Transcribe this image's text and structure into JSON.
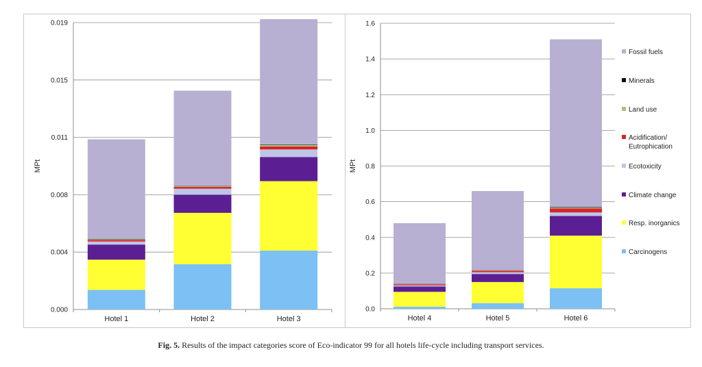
{
  "figure": {
    "caption_label": "Fig. 5.",
    "caption_text": "Results of the impact categories score of Eco-indicator 99 for all hotels life-cycle including transport services."
  },
  "legend": [
    {
      "name": "Fossil fuels",
      "color": "#b8b0d2"
    },
    {
      "name": "Minerals",
      "color": "#111111"
    },
    {
      "name": "Land use",
      "color": "#a9c57a"
    },
    {
      "name": "Acidification/ Eutrophication",
      "color": "#d8242b"
    },
    {
      "name": "Ecotoxicity",
      "color": "#bfc5e6"
    },
    {
      "name": "Climate change",
      "color": "#5b1f93"
    },
    {
      "name": "Resp. inorganics",
      "color": "#ffff33"
    },
    {
      "name": "Carcinogens",
      "color": "#7cc0f4"
    }
  ],
  "chart_data": [
    {
      "type": "bar",
      "stacked": true,
      "ylabel": "MPt",
      "ylim": [
        0,
        0.019
      ],
      "yticks": [
        "0.000",
        "0.004",
        "0.008",
        "0.011",
        "0.015",
        "0.019"
      ],
      "categories": [
        "Hotel 1",
        "Hotel 2",
        "Hotel 3"
      ],
      "series": [
        {
          "name": "Carcinogens",
          "color": "#7cc0f4",
          "values": [
            0.0013,
            0.003,
            0.0039
          ]
        },
        {
          "name": "Resp. inorganics",
          "color": "#ffff33",
          "values": [
            0.002,
            0.0034,
            0.0046
          ]
        },
        {
          "name": "Climate change",
          "color": "#5b1f93",
          "values": [
            0.001,
            0.0012,
            0.0016
          ]
        },
        {
          "name": "Ecotoxicity",
          "color": "#bfc5e6",
          "values": [
            0.0002,
            0.0004,
            0.0005
          ]
        },
        {
          "name": "Acidification/ Eutrophication",
          "color": "#d8242b",
          "values": [
            0.0001,
            0.00012,
            0.0002
          ]
        },
        {
          "name": "Land use",
          "color": "#a9c57a",
          "values": [
            5e-05,
            5e-05,
            0.0001
          ]
        },
        {
          "name": "Minerals",
          "color": "#111111",
          "values": [
            2e-05,
            2e-05,
            3e-05
          ]
        },
        {
          "name": "Fossil fuels",
          "color": "#b8b0d2",
          "values": [
            0.0066,
            0.0063,
            0.0083
          ]
        }
      ],
      "grid": true
    },
    {
      "type": "bar",
      "stacked": true,
      "ylabel": "MPt",
      "ylim": [
        0,
        1.6
      ],
      "yticks": [
        "0.0",
        "0.2",
        "0.4",
        "0.6",
        "0.8",
        "1.0",
        "1.2",
        "1.4",
        "1.6"
      ],
      "categories": [
        "Hotel 4",
        "Hotel 5",
        "Hotel 6"
      ],
      "series": [
        {
          "name": "Carcinogens",
          "color": "#7cc0f4",
          "values": [
            0.012,
            0.032,
            0.115
          ]
        },
        {
          "name": "Resp. inorganics",
          "color": "#ffff33",
          "values": [
            0.083,
            0.118,
            0.295
          ]
        },
        {
          "name": "Climate change",
          "color": "#5b1f93",
          "values": [
            0.03,
            0.045,
            0.11
          ]
        },
        {
          "name": "Ecotoxicity",
          "color": "#bfc5e6",
          "values": [
            0.006,
            0.01,
            0.02
          ]
        },
        {
          "name": "Acidification/ Eutrophication",
          "color": "#d8242b",
          "values": [
            0.006,
            0.008,
            0.022
          ]
        },
        {
          "name": "Land use",
          "color": "#a9c57a",
          "values": [
            0.002,
            0.002,
            0.005
          ]
        },
        {
          "name": "Minerals",
          "color": "#111111",
          "values": [
            0.001,
            0.001,
            0.003
          ]
        },
        {
          "name": "Fossil fuels",
          "color": "#b8b0d2",
          "values": [
            0.34,
            0.444,
            0.94
          ]
        }
      ],
      "grid": true,
      "legend_position": "right"
    }
  ]
}
